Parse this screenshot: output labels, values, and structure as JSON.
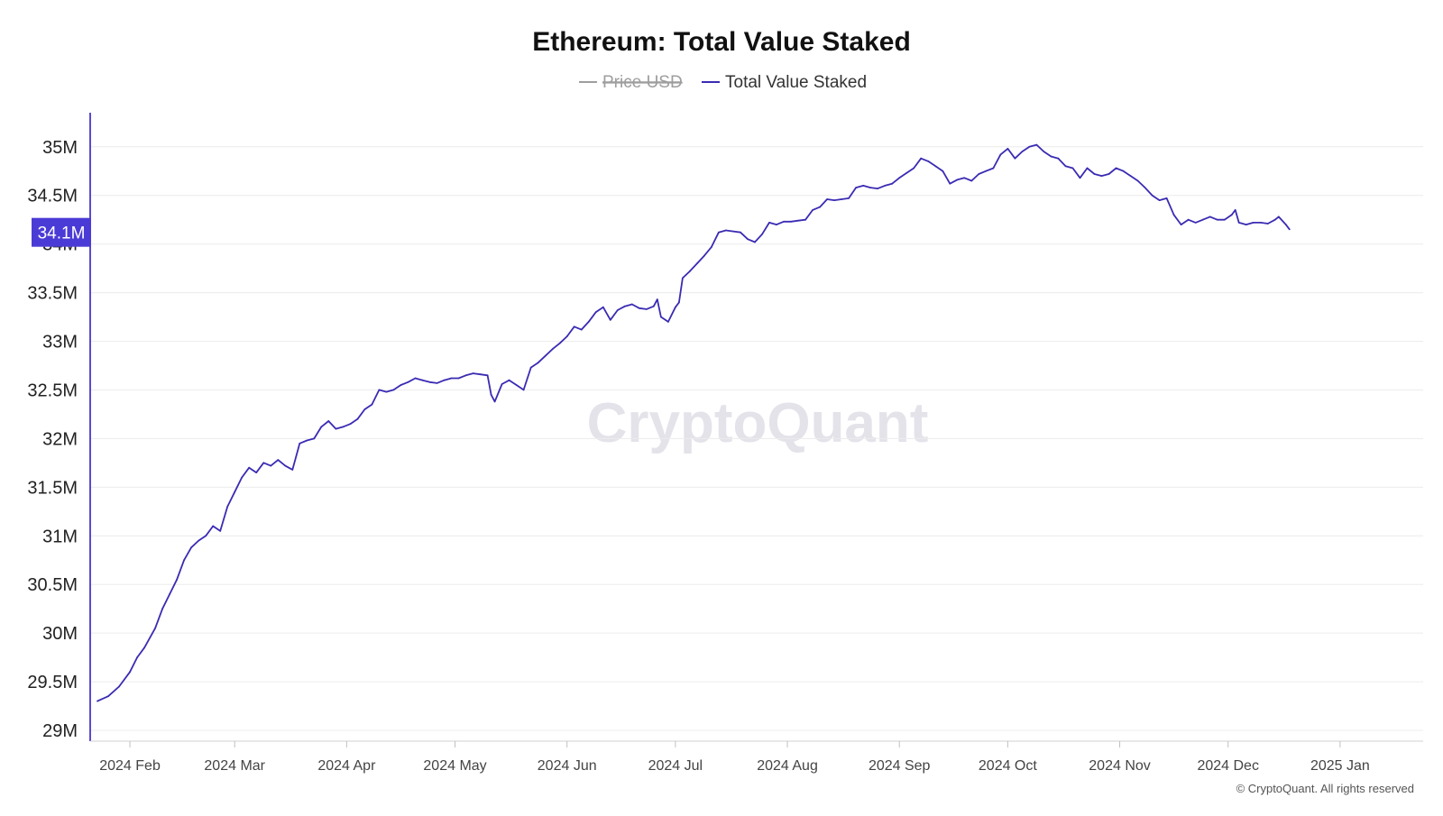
{
  "chart_data": {
    "type": "line",
    "title": "Ethereum: Total Value Staked",
    "legend": [
      {
        "name": "Price USD",
        "color": "#9e9e9e",
        "hidden": true
      },
      {
        "name": "Total Value Staked",
        "color": "#3a2bb3",
        "hidden": false
      }
    ],
    "legend_position": "top-center",
    "grid": true,
    "y_ticks": [
      "29M",
      "29.5M",
      "30M",
      "30.5M",
      "31M",
      "31.5M",
      "32M",
      "32.5M",
      "33M",
      "33.5M",
      "34M",
      "34.5M",
      "35M"
    ],
    "y_tick_values": [
      29,
      29.5,
      30,
      30.5,
      31,
      31.5,
      32,
      32.5,
      33,
      33.5,
      34,
      34.5,
      35
    ],
    "ylim": [
      29,
      35.35
    ],
    "y_unit": "M",
    "x_ticks": [
      "2024 Feb",
      "2024 Mar",
      "2024 Apr",
      "2024 May",
      "2024 Jun",
      "2024 Jul",
      "2024 Aug",
      "2024 Sep",
      "2024 Oct",
      "2024 Nov",
      "2024 Dec",
      "2025 Jan"
    ],
    "x_tick_days": [
      9,
      38,
      69,
      99,
      130,
      160,
      191,
      222,
      252,
      283,
      313,
      344
    ],
    "xlim": [
      0,
      367
    ],
    "current_value_label": "34.1M",
    "current_value": 34.12,
    "watermark": "CryptoQuant",
    "copyright": "© CryptoQuant. All rights reserved",
    "series": [
      {
        "name": "Total Value Staked",
        "color": "#3a2bb3",
        "points": [
          [
            0,
            29.3
          ],
          [
            3,
            29.35
          ],
          [
            6,
            29.45
          ],
          [
            9,
            29.6
          ],
          [
            11,
            29.75
          ],
          [
            13,
            29.85
          ],
          [
            16,
            30.05
          ],
          [
            18,
            30.25
          ],
          [
            20,
            30.4
          ],
          [
            22,
            30.55
          ],
          [
            24,
            30.75
          ],
          [
            26,
            30.88
          ],
          [
            28,
            30.95
          ],
          [
            30,
            31.0
          ],
          [
            32,
            31.1
          ],
          [
            34,
            31.05
          ],
          [
            36,
            31.3
          ],
          [
            38,
            31.45
          ],
          [
            40,
            31.6
          ],
          [
            42,
            31.7
          ],
          [
            44,
            31.65
          ],
          [
            46,
            31.75
          ],
          [
            48,
            31.72
          ],
          [
            50,
            31.78
          ],
          [
            52,
            31.72
          ],
          [
            54,
            31.68
          ],
          [
            56,
            31.95
          ],
          [
            58,
            31.98
          ],
          [
            60,
            32.0
          ],
          [
            62,
            32.12
          ],
          [
            64,
            32.18
          ],
          [
            66,
            32.1
          ],
          [
            68,
            32.12
          ],
          [
            70,
            32.15
          ],
          [
            72,
            32.2
          ],
          [
            74,
            32.3
          ],
          [
            76,
            32.35
          ],
          [
            78,
            32.5
          ],
          [
            80,
            32.48
          ],
          [
            82,
            32.5
          ],
          [
            84,
            32.55
          ],
          [
            86,
            32.58
          ],
          [
            88,
            32.62
          ],
          [
            90,
            32.6
          ],
          [
            92,
            32.58
          ],
          [
            94,
            32.57
          ],
          [
            96,
            32.6
          ],
          [
            98,
            32.62
          ],
          [
            100,
            32.62
          ],
          [
            102,
            32.65
          ],
          [
            104,
            32.67
          ],
          [
            106,
            32.66
          ],
          [
            108,
            32.65
          ],
          [
            109,
            32.45
          ],
          [
            110,
            32.38
          ],
          [
            112,
            32.56
          ],
          [
            114,
            32.6
          ],
          [
            116,
            32.55
          ],
          [
            118,
            32.5
          ],
          [
            120,
            32.73
          ],
          [
            122,
            32.78
          ],
          [
            124,
            32.85
          ],
          [
            126,
            32.92
          ],
          [
            128,
            32.98
          ],
          [
            130,
            33.05
          ],
          [
            132,
            33.15
          ],
          [
            134,
            33.12
          ],
          [
            136,
            33.2
          ],
          [
            138,
            33.3
          ],
          [
            140,
            33.35
          ],
          [
            142,
            33.22
          ],
          [
            144,
            33.32
          ],
          [
            146,
            33.36
          ],
          [
            148,
            33.38
          ],
          [
            150,
            33.34
          ],
          [
            152,
            33.33
          ],
          [
            154,
            33.36
          ],
          [
            155,
            33.43
          ],
          [
            156,
            33.25
          ],
          [
            158,
            33.2
          ],
          [
            160,
            33.35
          ],
          [
            161,
            33.4
          ],
          [
            162,
            33.65
          ],
          [
            164,
            33.72
          ],
          [
            166,
            33.8
          ],
          [
            168,
            33.88
          ],
          [
            170,
            33.97
          ],
          [
            172,
            34.12
          ],
          [
            174,
            34.14
          ],
          [
            176,
            34.13
          ],
          [
            178,
            34.12
          ],
          [
            180,
            34.05
          ],
          [
            182,
            34.02
          ],
          [
            184,
            34.1
          ],
          [
            186,
            34.22
          ],
          [
            188,
            34.2
          ],
          [
            190,
            34.23
          ],
          [
            192,
            34.23
          ],
          [
            194,
            34.24
          ],
          [
            196,
            34.25
          ],
          [
            198,
            34.35
          ],
          [
            200,
            34.38
          ],
          [
            202,
            34.46
          ],
          [
            204,
            34.45
          ],
          [
            206,
            34.46
          ],
          [
            208,
            34.47
          ],
          [
            210,
            34.58
          ],
          [
            212,
            34.6
          ],
          [
            214,
            34.58
          ],
          [
            216,
            34.57
          ],
          [
            218,
            34.6
          ],
          [
            220,
            34.62
          ],
          [
            222,
            34.68
          ],
          [
            224,
            34.73
          ],
          [
            226,
            34.78
          ],
          [
            228,
            34.88
          ],
          [
            230,
            34.85
          ],
          [
            232,
            34.8
          ],
          [
            234,
            34.75
          ],
          [
            236,
            34.62
          ],
          [
            238,
            34.66
          ],
          [
            240,
            34.68
          ],
          [
            242,
            34.65
          ],
          [
            244,
            34.72
          ],
          [
            246,
            34.75
          ],
          [
            248,
            34.78
          ],
          [
            250,
            34.92
          ],
          [
            252,
            34.98
          ],
          [
            254,
            34.88
          ],
          [
            256,
            34.95
          ],
          [
            258,
            35.0
          ],
          [
            260,
            35.02
          ],
          [
            262,
            34.95
          ],
          [
            264,
            34.9
          ],
          [
            266,
            34.88
          ],
          [
            268,
            34.8
          ],
          [
            270,
            34.78
          ],
          [
            272,
            34.68
          ],
          [
            274,
            34.78
          ],
          [
            276,
            34.72
          ],
          [
            278,
            34.7
          ],
          [
            280,
            34.72
          ],
          [
            282,
            34.78
          ],
          [
            284,
            34.75
          ],
          [
            286,
            34.7
          ],
          [
            288,
            34.65
          ],
          [
            290,
            34.58
          ],
          [
            292,
            34.5
          ],
          [
            294,
            34.45
          ],
          [
            296,
            34.47
          ],
          [
            298,
            34.3
          ],
          [
            300,
            34.2
          ],
          [
            302,
            34.25
          ],
          [
            304,
            34.22
          ],
          [
            306,
            34.25
          ],
          [
            308,
            34.28
          ],
          [
            310,
            34.25
          ],
          [
            312,
            34.25
          ],
          [
            314,
            34.3
          ],
          [
            315,
            34.35
          ],
          [
            316,
            34.22
          ],
          [
            318,
            34.2
          ],
          [
            320,
            34.22
          ],
          [
            322,
            34.22
          ],
          [
            324,
            34.21
          ],
          [
            326,
            34.25
          ],
          [
            327,
            34.28
          ],
          [
            329,
            34.2
          ],
          [
            330,
            34.15
          ]
        ]
      }
    ]
  }
}
